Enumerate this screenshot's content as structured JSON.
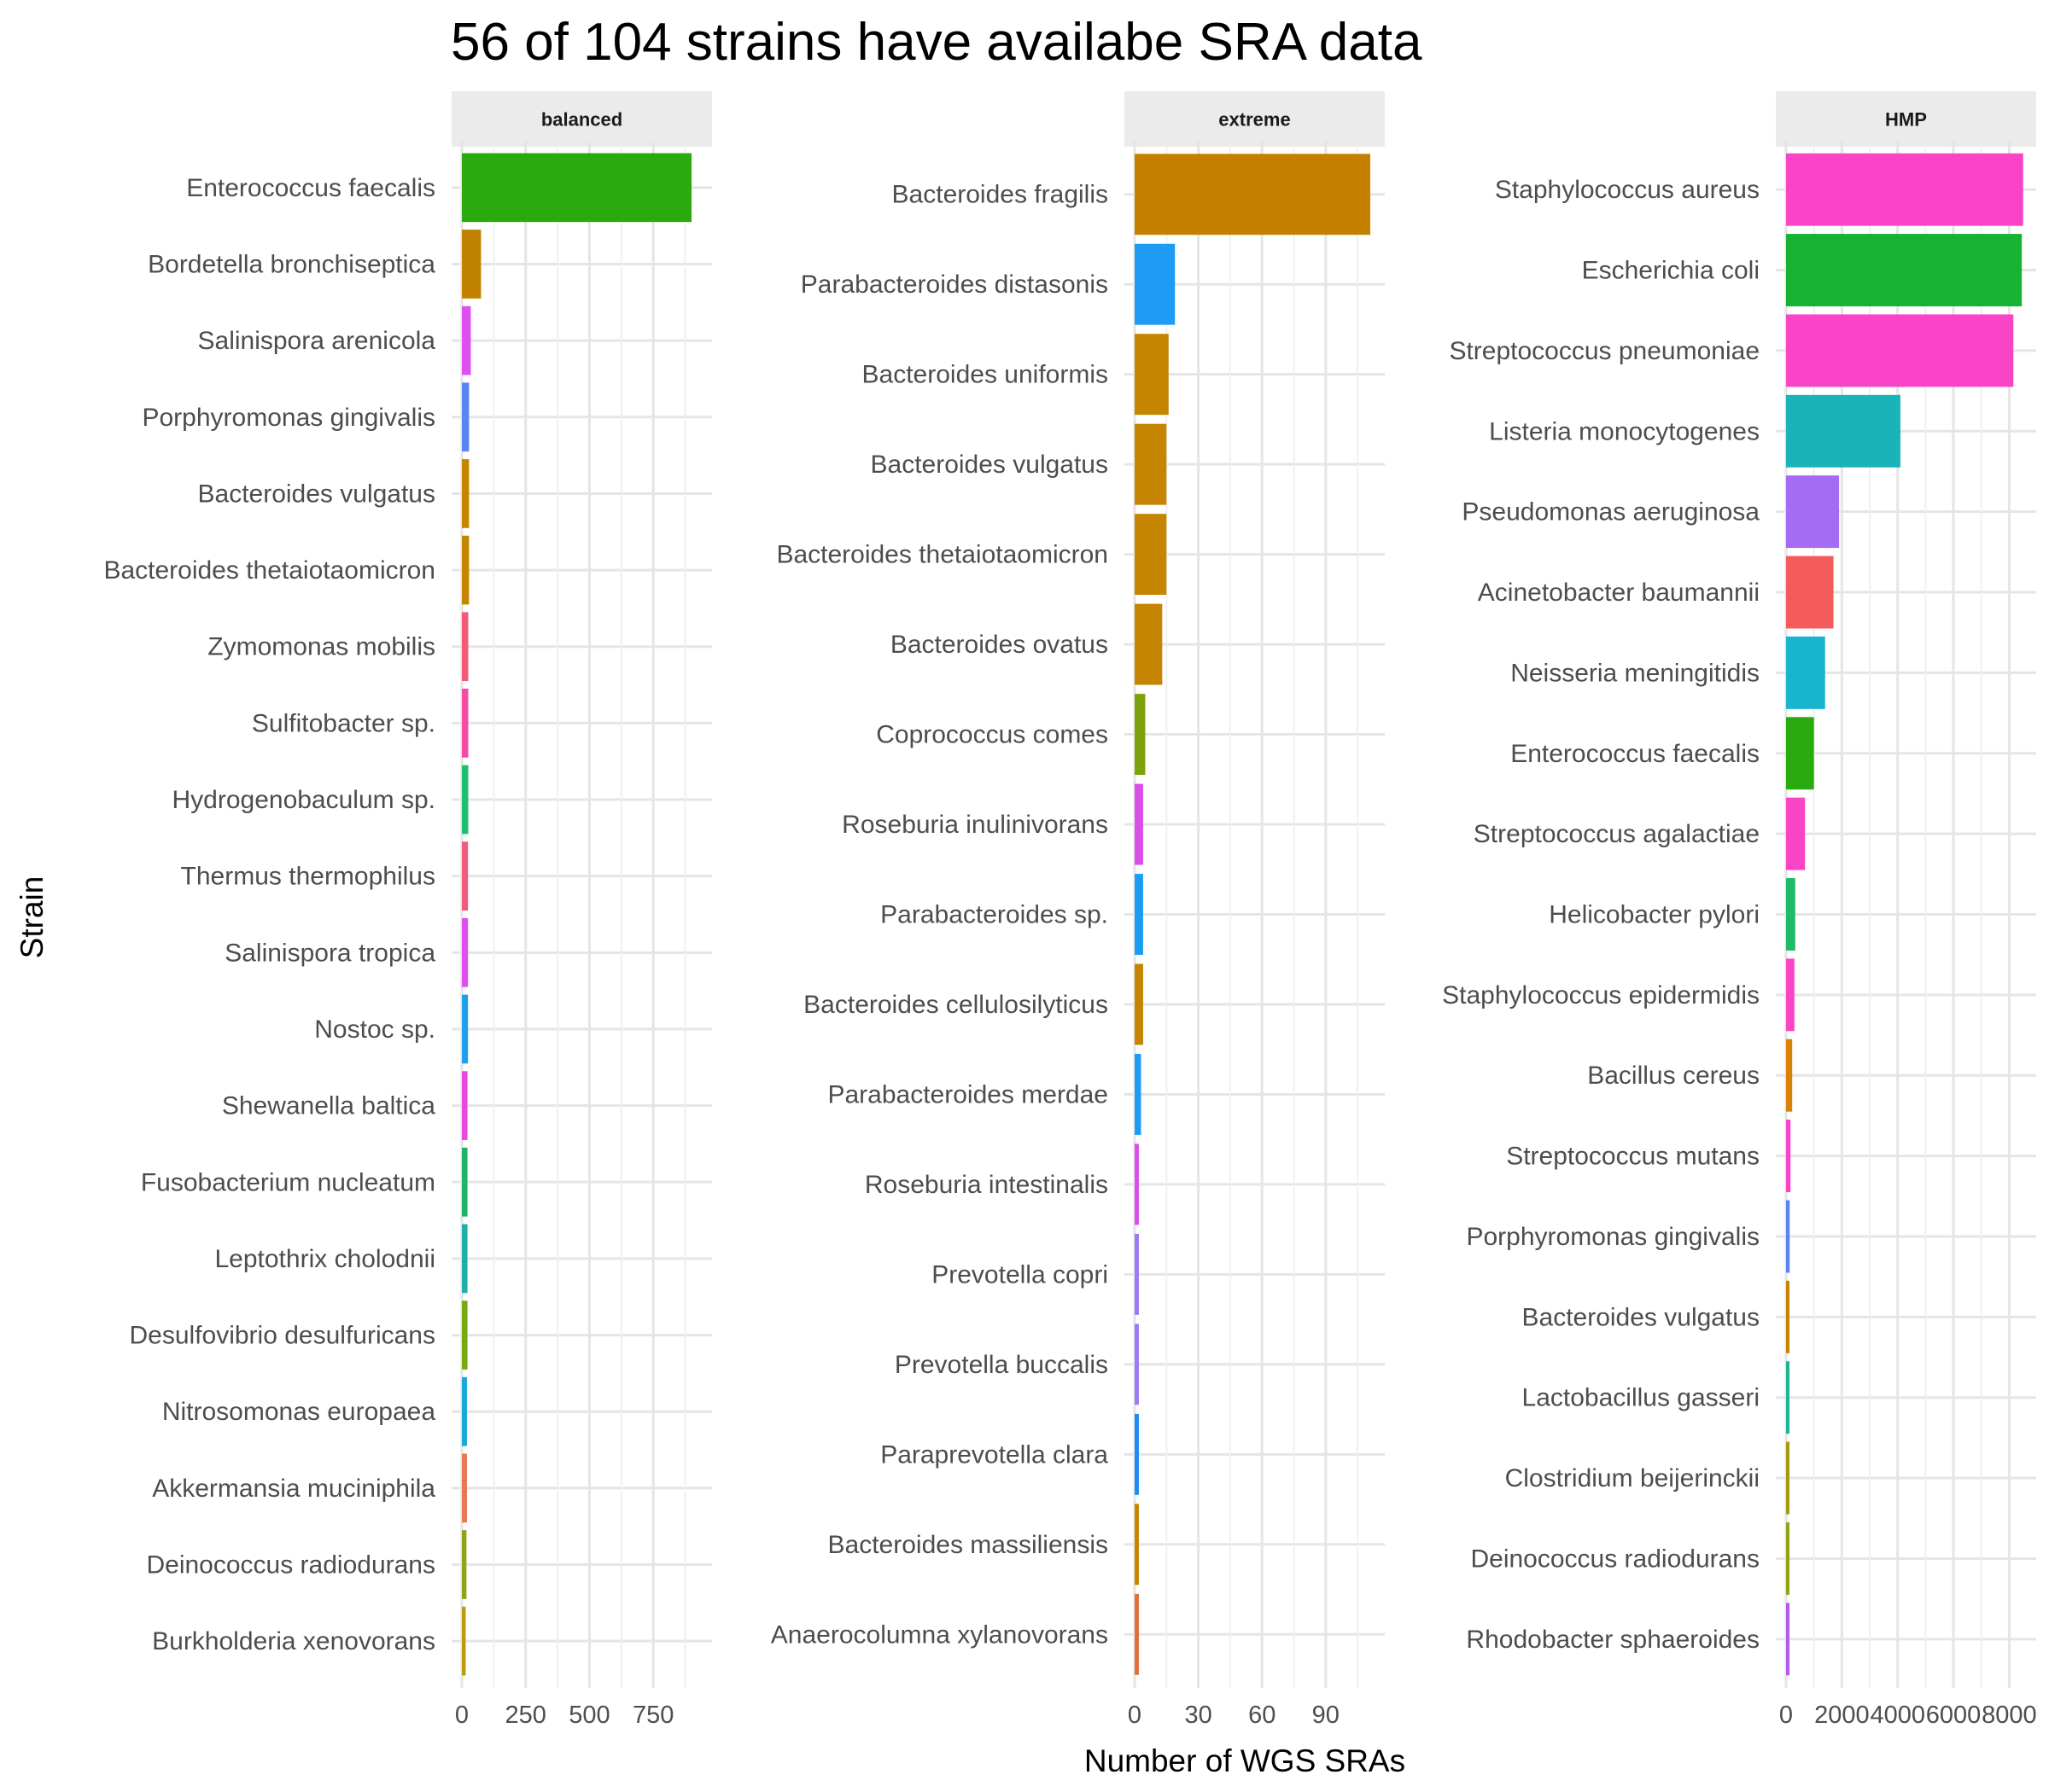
{
  "chart_data": {
    "type": "bar",
    "title": "56 of 104 strains have availabe SRA data",
    "xlabel": "Number of WGS SRAs",
    "ylabel": "Strain",
    "grid": true,
    "panels": [
      {
        "name": "balanced",
        "xlim": [
          0,
          940
        ],
        "ticks": [
          0,
          250,
          500,
          750
        ],
        "bars": [
          {
            "category": "Enterococcus faecalis",
            "value": 900,
            "color": "#2BAA0F"
          },
          {
            "category": "Bordetella bronchiseptica",
            "value": 75,
            "color": "#C08200"
          },
          {
            "category": "Salinispora arenicola",
            "value": 35,
            "color": "#DE4FF0"
          },
          {
            "category": "Porphyromonas gingivalis",
            "value": 28,
            "color": "#5B84F2"
          },
          {
            "category": "Bacteroides vulgatus",
            "value": 28,
            "color": "#C58500"
          },
          {
            "category": "Bacteroides thetaiotaomicron",
            "value": 28,
            "color": "#C58500"
          },
          {
            "category": "Zymomonas mobilis",
            "value": 25,
            "color": "#F25A78"
          },
          {
            "category": "Sulfitobacter sp.",
            "value": 25,
            "color": "#F74BA8"
          },
          {
            "category": "Hydrogenobaculum sp.",
            "value": 25,
            "color": "#1FBF70"
          },
          {
            "category": "Thermus thermophilus",
            "value": 24,
            "color": "#F25A7E"
          },
          {
            "category": "Salinispora tropica",
            "value": 24,
            "color": "#DE4FF0"
          },
          {
            "category": "Nostoc sp.",
            "value": 24,
            "color": "#1E9FF0"
          },
          {
            "category": "Shewanella baltica",
            "value": 22,
            "color": "#E848E0"
          },
          {
            "category": "Fusobacterium nucleatum",
            "value": 22,
            "color": "#1FB46A"
          },
          {
            "category": "Leptothrix cholodnii",
            "value": 22,
            "color": "#1EB0A8"
          },
          {
            "category": "Desulfovibrio desulfuricans",
            "value": 22,
            "color": "#78AA10"
          },
          {
            "category": "Nitrosomonas europaea",
            "value": 20,
            "color": "#1AA8D8"
          },
          {
            "category": "Akkermansia muciniphila",
            "value": 20,
            "color": "#E87850"
          },
          {
            "category": "Deinococcus radiodurans",
            "value": 18,
            "color": "#94A218"
          },
          {
            "category": "Burkholderia xenovorans",
            "value": 15,
            "color": "#BC9A10"
          }
        ]
      },
      {
        "name": "extreme",
        "xlim": [
          0,
          113
        ],
        "ticks": [
          0,
          30,
          60,
          90
        ],
        "bars": [
          {
            "category": "Bacteroides fragilis",
            "value": 111,
            "color": "#C58000"
          },
          {
            "category": "Parabacteroides distasonis",
            "value": 19,
            "color": "#1E9CF4"
          },
          {
            "category": "Bacteroides uniformis",
            "value": 16,
            "color": "#C58500"
          },
          {
            "category": "Bacteroides vulgatus",
            "value": 15,
            "color": "#C58500"
          },
          {
            "category": "Bacteroides thetaiotaomicron",
            "value": 15,
            "color": "#C58500"
          },
          {
            "category": "Bacteroides ovatus",
            "value": 13,
            "color": "#C58500"
          },
          {
            "category": "Coprococcus comes",
            "value": 5,
            "color": "#7CA30B"
          },
          {
            "category": "Roseburia inulinivorans",
            "value": 4,
            "color": "#D84FE8"
          },
          {
            "category": "Parabacteroides sp.",
            "value": 4,
            "color": "#1E9CF4"
          },
          {
            "category": "Bacteroides cellulosilyticus",
            "value": 4,
            "color": "#C58500"
          },
          {
            "category": "Parabacteroides merdae",
            "value": 3,
            "color": "#1E9CF4"
          },
          {
            "category": "Roseburia intestinalis",
            "value": 2,
            "color": "#D84FE8"
          },
          {
            "category": "Prevotella copri",
            "value": 2,
            "color": "#9B7BF5"
          },
          {
            "category": "Prevotella buccalis",
            "value": 2,
            "color": "#9B7BF5"
          },
          {
            "category": "Paraprevotella clara",
            "value": 2,
            "color": "#1E8CF0"
          },
          {
            "category": "Bacteroides massiliensis",
            "value": 2,
            "color": "#C58500"
          },
          {
            "category": "Anaerocolumna xylanovorans",
            "value": 2,
            "color": "#E07038"
          }
        ]
      },
      {
        "name": "HMP",
        "xlim": [
          0,
          8600
        ],
        "ticks": [
          0,
          2000,
          4000,
          6000,
          8000
        ],
        "bars": [
          {
            "category": "Staphylococcus aureus",
            "value": 8500,
            "color": "#FA44C8"
          },
          {
            "category": "Escherichia coli",
            "value": 8450,
            "color": "#18B232"
          },
          {
            "category": "Streptococcus pneumoniae",
            "value": 8150,
            "color": "#FA44C8"
          },
          {
            "category": "Listeria monocytogenes",
            "value": 4100,
            "color": "#1AB4B8"
          },
          {
            "category": "Pseudomonas aeruginosa",
            "value": 1900,
            "color": "#A46CF5"
          },
          {
            "category": "Acinetobacter baumannii",
            "value": 1700,
            "color": "#F45B5B"
          },
          {
            "category": "Neisseria meningitidis",
            "value": 1400,
            "color": "#18B4D0"
          },
          {
            "category": "Enterococcus faecalis",
            "value": 1000,
            "color": "#2BAA0F"
          },
          {
            "category": "Streptococcus agalactiae",
            "value": 680,
            "color": "#FA44C8"
          },
          {
            "category": "Helicobacter pylori",
            "value": 330,
            "color": "#20BA6A"
          },
          {
            "category": "Staphylococcus epidermidis",
            "value": 300,
            "color": "#FA44C8"
          },
          {
            "category": "Bacillus cereus",
            "value": 220,
            "color": "#D88208"
          },
          {
            "category": "Streptococcus mutans",
            "value": 160,
            "color": "#FA44C8"
          },
          {
            "category": "Porphyromonas gingivalis",
            "value": 130,
            "color": "#5B84F2"
          },
          {
            "category": "Bacteroides vulgatus",
            "value": 120,
            "color": "#C58500"
          },
          {
            "category": "Lactobacillus gasseri",
            "value": 110,
            "color": "#1FB49A"
          },
          {
            "category": "Clostridium beijerinckii",
            "value": 100,
            "color": "#A39A10"
          },
          {
            "category": "Deinococcus radiodurans",
            "value": 100,
            "color": "#94A218"
          },
          {
            "category": "Rhodobacter sphaeroides",
            "value": 90,
            "color": "#B05AF0"
          }
        ]
      }
    ]
  }
}
